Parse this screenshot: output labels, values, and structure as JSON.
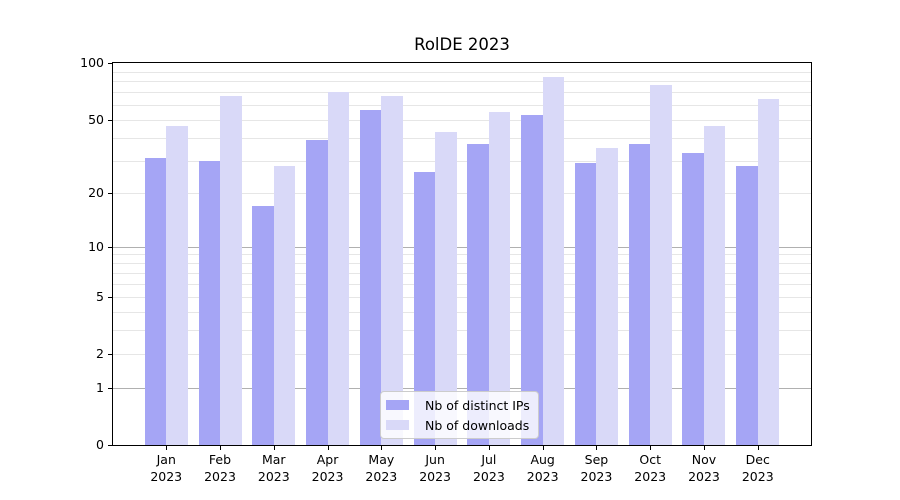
{
  "title": "RolDE 2023",
  "chart_data": {
    "type": "bar",
    "title": "RolDE 2023",
    "categories": [
      "Jan 2023",
      "Feb 2023",
      "Mar 2023",
      "Apr 2023",
      "May 2023",
      "Jun 2023",
      "Jul 2023",
      "Aug 2023",
      "Sep 2023",
      "Oct 2023",
      "Nov 2023",
      "Dec 2023"
    ],
    "x_month_labels": [
      "Jan",
      "Feb",
      "Mar",
      "Apr",
      "May",
      "Jun",
      "Jul",
      "Aug",
      "Sep",
      "Oct",
      "Nov",
      "Dec"
    ],
    "x_year_label": "2023",
    "series": [
      {
        "name": "Nb of distinct IPs",
        "color": "#a5a5f5",
        "values": [
          31,
          30,
          17,
          39,
          56,
          26,
          37,
          53,
          29,
          37,
          33,
          28
        ]
      },
      {
        "name": "Nb of downloads",
        "color": "#d9d9f8",
        "values": [
          46,
          67,
          28,
          70,
          67,
          43,
          55,
          84,
          35,
          76,
          46,
          64
        ]
      }
    ],
    "yscale": "log1p",
    "ylim": [
      0,
      100
    ],
    "ytick_values": [
      100,
      50,
      20,
      10,
      5,
      2,
      1,
      0
    ],
    "ytick_labels": [
      "100",
      "50",
      "20",
      "10",
      "5",
      "2",
      "1",
      "0"
    ],
    "major_grid_values": [
      1,
      10
    ],
    "minor_grid_values": [
      2,
      3,
      4,
      5,
      6,
      7,
      8,
      9,
      20,
      30,
      40,
      50,
      60,
      70,
      80,
      90
    ],
    "grid": true,
    "legend_position": "lower center",
    "legend_labels": [
      "Nb of distinct IPs",
      "Nb of downloads"
    ]
  },
  "colors": {
    "background": "#ffffff",
    "bar_distinct_ips": "#a5a5f5",
    "bar_downloads": "#d9d9f8",
    "grid_major": "#b0b0b0",
    "grid_minor": "#e6e6e6",
    "spine": "#000000",
    "text": "#000000",
    "legend_border": "#cccccc"
  }
}
